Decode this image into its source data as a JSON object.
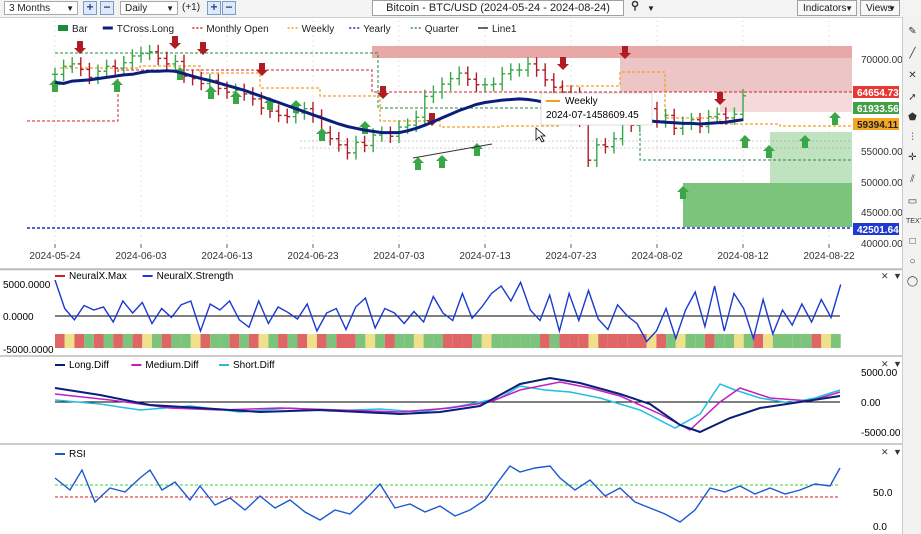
{
  "toolbar": {
    "period": "3 Months",
    "interval": "Daily",
    "offset": "(+1)",
    "plus_label": "+",
    "minus_label": "−",
    "title": "Bitcoin - BTC/USD (2024-05-24 - 2024-08-24)",
    "indicators_label": "Indicators",
    "views_label": "Views"
  },
  "price_panel": {
    "legend": [
      {
        "label": "Bar",
        "color": "#1a8a3a"
      },
      {
        "label": "TCross.Long",
        "color": "#0a1f7a"
      },
      {
        "label": "Monthly Open",
        "color": "#d0202a"
      },
      {
        "label": "Weekly",
        "color": "#f0a020"
      },
      {
        "label": "Yearly",
        "color": "#1a2ad0"
      },
      {
        "label": "Quarter",
        "color": "#2a8a3a"
      },
      {
        "label": "Line1",
        "color": "#333333"
      }
    ],
    "y_ticks": [
      "70000.00",
      "55000.00",
      "50000.00",
      "45000.00",
      "40000.00"
    ],
    "price_labels": [
      {
        "text": "64654.73",
        "bg": "#e53935"
      },
      {
        "text": "61933.56",
        "bg": "#43a047"
      },
      {
        "text": "59394.11",
        "bg": "#f5a623"
      },
      {
        "text": "42501.64",
        "bg": "#1e3ad0"
      }
    ],
    "x_ticks": [
      "2024-05-24",
      "2024-06-03",
      "2024-06-13",
      "2024-06-23",
      "2024-07-03",
      "2024-07-13",
      "2024-07-23",
      "2024-08-02",
      "2024-08-12",
      "2024-08-22"
    ],
    "tooltip": {
      "name": "Weekly",
      "date": "2024-07-14",
      "value": "58609.45"
    }
  },
  "neural_panel": {
    "legend": [
      {
        "label": "NeuralX.Max",
        "color": "#d02020"
      },
      {
        "label": "NeuralX.Strength",
        "color": "#1a3ad0"
      }
    ],
    "y_ticks": [
      "5000.0000",
      "0.0000",
      "-5000.0000"
    ]
  },
  "diff_panel": {
    "legend": [
      {
        "label": "Long.Diff",
        "color": "#0a1f7a"
      },
      {
        "label": "Medium.Diff",
        "color": "#c020c0"
      },
      {
        "label": "Short.Diff",
        "color": "#20c0e0"
      }
    ],
    "y_ticks": [
      "5000.00",
      "0.00",
      "-5000.00"
    ]
  },
  "rsi_panel": {
    "legend": [
      {
        "label": "RSI",
        "color": "#1a5ad0"
      }
    ],
    "y_ticks": [
      "50.0",
      "0.0"
    ]
  },
  "colors": {
    "bull": "#3aa648",
    "bear": "#b01c24",
    "tcross": "#0a1f7a",
    "monthly": "#d0202a",
    "weekly": "#f0a020",
    "yearly": "#1a2ad0",
    "quarter": "#2a8a3a"
  }
}
